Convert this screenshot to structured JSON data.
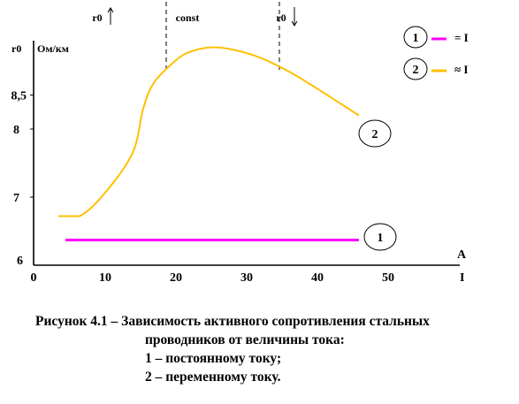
{
  "chart_data": {
    "type": "line",
    "y_axis_symbol": "r0",
    "y_unit": "Ом/км",
    "x_axis_symbol": "I",
    "x_unit": "A",
    "xlim": [
      0,
      55
    ],
    "ylim": [
      6,
      10
    ],
    "x_ticks": [
      0,
      10,
      20,
      30,
      40,
      50
    ],
    "y_ticks": [
      {
        "value": 6,
        "label": "6"
      },
      {
        "value": 7,
        "label": "7"
      },
      {
        "value": 8,
        "label": "8"
      },
      {
        "value": 8.5,
        "label": "8,5"
      }
    ],
    "regions": [
      {
        "label": "r0",
        "arrow": "up",
        "x_from": 0,
        "x_to": 15
      },
      {
        "label": "const",
        "arrow": "",
        "x_from": 15,
        "x_to": 31
      },
      {
        "label": "r0",
        "arrow": "down",
        "x_from": 31,
        "x_to": 50
      }
    ],
    "region_boundaries": [
      15,
      31
    ],
    "series": [
      {
        "name": "1",
        "legend_text": "= I",
        "color": "#ff00ff",
        "x": [
          4.5,
          46
        ],
        "y": [
          6.37,
          6.37
        ]
      },
      {
        "name": "2",
        "legend_text": "≈ I",
        "color": "#ffc000",
        "x": [
          3.5,
          6.5,
          10,
          14,
          15.5,
          17,
          20,
          22,
          25,
          28,
          32,
          36,
          40,
          43,
          46
        ],
        "y": [
          6.72,
          6.72,
          7.05,
          7.65,
          8.3,
          8.68,
          9.0,
          9.13,
          9.2,
          9.17,
          9.05,
          8.85,
          8.6,
          8.4,
          8.2
        ]
      }
    ],
    "legend": {
      "placement": "top-right"
    }
  },
  "caption": {
    "line1": "Рисунок 4.1 – Зависимость активного сопротивления стальных",
    "line2": "проводников от величины тока:",
    "line3": "1 – постоянному току;",
    "line4": "2 – переменному току."
  }
}
